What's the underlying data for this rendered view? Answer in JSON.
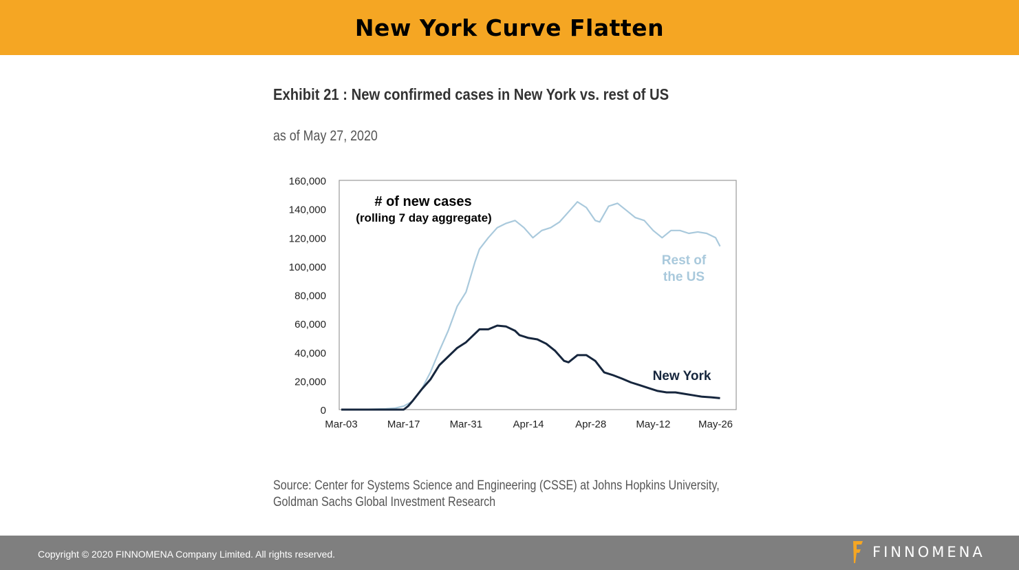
{
  "header": {
    "title": "New York Curve Flatten"
  },
  "exhibit": {
    "title": "Exhibit 21 : New confirmed cases in New York vs. rest of US",
    "subtitle": "as of May 27, 2020",
    "source_line1": "Source: Center for Systems Science and Engineering (CSSE) at Johns Hopkins University,",
    "source_line2": "Goldman Sachs Global Investment Research"
  },
  "footer": {
    "copyright": "Copyright © 2020 FINNOMENA Company Limited. All rights reserved.",
    "logo_text": "FINNOMENA"
  },
  "colors": {
    "header": "#F5A623",
    "rest_of_us": "#a9c9dc",
    "new_york": "#16263d",
    "footer": "#7f7f7f"
  },
  "chart_data": {
    "type": "line",
    "annotation_title": "# of new cases",
    "annotation_subtitle": "(rolling 7 day aggregate)",
    "x_unit": "days since Mar-03",
    "xticks": [
      {
        "day": 0,
        "label": "Mar-03"
      },
      {
        "day": 14,
        "label": "Mar-17"
      },
      {
        "day": 28,
        "label": "Mar-31"
      },
      {
        "day": 42,
        "label": "Apr-14"
      },
      {
        "day": 56,
        "label": "Apr-28"
      },
      {
        "day": 70,
        "label": "May-12"
      },
      {
        "day": 84,
        "label": "May-26"
      }
    ],
    "yticks": [
      {
        "v": 0,
        "label": "0"
      },
      {
        "v": 20000,
        "label": "20,000"
      },
      {
        "v": 40000,
        "label": "40,000"
      },
      {
        "v": 60000,
        "label": "60,000"
      },
      {
        "v": 80000,
        "label": "80,000"
      },
      {
        "v": 100000,
        "label": "100,000"
      },
      {
        "v": 120000,
        "label": "120,000"
      },
      {
        "v": 140000,
        "label": "140,000"
      },
      {
        "v": 160000,
        "label": "160,000"
      }
    ],
    "ylim": [
      0,
      160000
    ],
    "xlim": [
      -0.5,
      88.5
    ],
    "grid": false,
    "series": [
      {
        "name": "Rest of the US",
        "label_line1": "Rest of",
        "label_line2": "the US",
        "color": "#a9c9dc",
        "x": [
          0,
          6,
          10,
          12,
          14,
          16,
          18,
          20,
          22,
          24,
          26,
          28,
          30,
          31,
          33,
          35,
          37,
          39,
          41,
          43,
          45,
          47,
          49,
          51,
          53,
          55,
          57,
          58,
          60,
          62,
          64,
          66,
          68,
          70,
          72,
          74,
          76,
          78,
          80,
          82,
          84,
          85
        ],
        "y": [
          0,
          200,
          600,
          1000,
          2400,
          5800,
          14000,
          26000,
          41000,
          55000,
          72000,
          82000,
          103000,
          112000,
          120000,
          127000,
          130000,
          132000,
          127000,
          120000,
          125000,
          127000,
          131000,
          138000,
          145000,
          141000,
          132000,
          131000,
          142000,
          144000,
          139000,
          134000,
          132000,
          125000,
          120000,
          125000,
          125000,
          123000,
          124000,
          123000,
          120000,
          114000
        ]
      },
      {
        "name": "New York",
        "color": "#16263d",
        "x": [
          0,
          6,
          10,
          14,
          15,
          16,
          18,
          20,
          22,
          24,
          26,
          28,
          30,
          31,
          33,
          35,
          37,
          39,
          40,
          42,
          44,
          46,
          48,
          50,
          51,
          53,
          55,
          57,
          59,
          61,
          63,
          65,
          67,
          69,
          71,
          73,
          75,
          77,
          79,
          81,
          83,
          85
        ],
        "y": [
          0,
          0,
          0,
          0,
          2400,
          6000,
          14000,
          21000,
          31000,
          37000,
          43000,
          47000,
          53000,
          56000,
          56000,
          58600,
          58000,
          55000,
          52000,
          50000,
          49000,
          46000,
          41000,
          34000,
          33000,
          38000,
          38000,
          34000,
          26000,
          24000,
          21600,
          19000,
          17000,
          15000,
          13000,
          12000,
          12000,
          11000,
          10000,
          9000,
          8600,
          8000
        ]
      }
    ]
  }
}
